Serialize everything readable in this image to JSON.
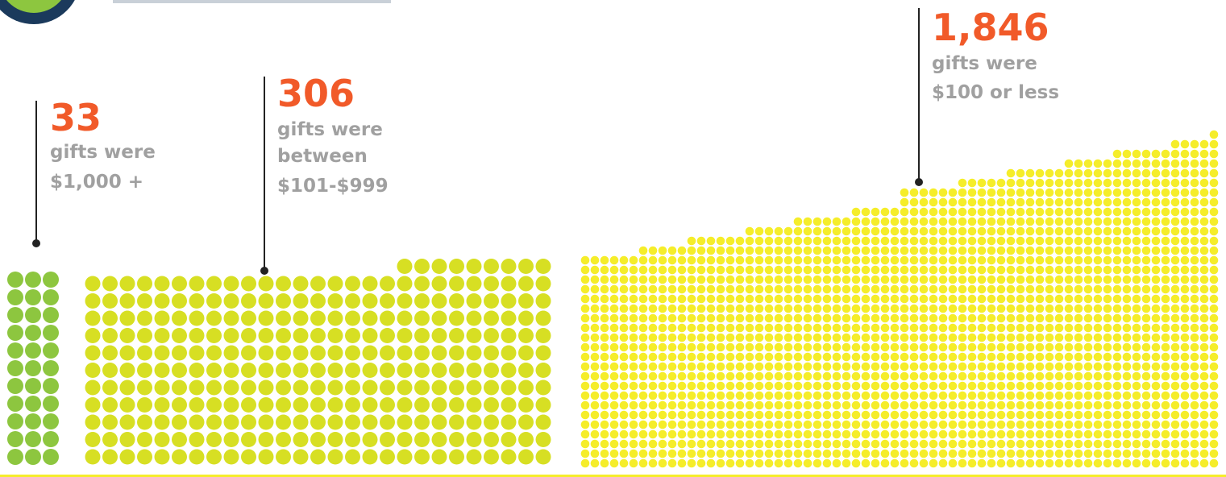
{
  "chart_data": {
    "type": "unit",
    "values": [
      33,
      306,
      1846
    ],
    "value_labels": [
      "33",
      "306",
      "1,846"
    ],
    "labels": [
      [
        "gifts were",
        "$1,000 +"
      ],
      [
        "gifts were",
        "between",
        "$101-$999"
      ],
      [
        "gifts were",
        "$100 or less"
      ]
    ],
    "colors": [
      "#8dc63f",
      "#d7df23",
      "#f5ed2a"
    ]
  }
}
